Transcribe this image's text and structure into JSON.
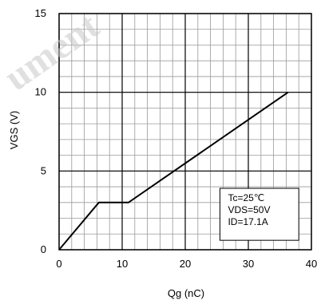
{
  "chart_data": {
    "type": "line",
    "xlabel": "Qg (nC)",
    "ylabel": "VGS (V)",
    "xlim": [
      0,
      40
    ],
    "ylim": [
      0,
      15
    ],
    "x_ticks": [
      "0",
      "10",
      "20",
      "30",
      "40"
    ],
    "y_ticks": [
      "0",
      "5",
      "10",
      "15"
    ],
    "grid": true,
    "minor_grid_x_step": 2,
    "minor_grid_y_step": 1,
    "series": [
      {
        "x": [
          0,
          6.3,
          11.0,
          36.3
        ],
        "y": [
          0,
          3.0,
          3.0,
          10.0
        ],
        "color": "#000000"
      }
    ],
    "annotation": [
      "Tc=25℃",
      "VDS=50V",
      "ID=17.1A"
    ],
    "watermark": "ument"
  }
}
